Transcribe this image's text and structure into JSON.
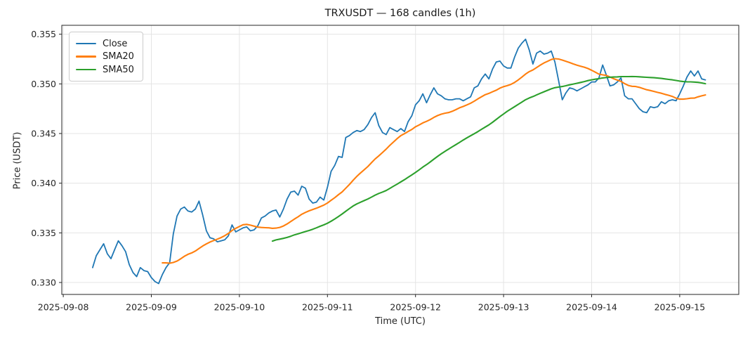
{
  "chart_data": {
    "type": "line",
    "title": "TRXUSDT — 168 candles (1h)",
    "symbol": "TRXUSDT",
    "candle_count": 168,
    "interval": "1h",
    "xlabel": "Time (UTC)",
    "ylabel": "Price (USDT)",
    "grid": true,
    "legend_position": "upper left",
    "x_tick_labels": [
      "2025-09-08",
      "2025-09-09",
      "2025-09-10",
      "2025-09-11",
      "2025-09-12",
      "2025-09-13",
      "2025-09-14",
      "2025-09-15"
    ],
    "x_tick_hours": [
      0,
      24,
      48,
      72,
      96,
      120,
      144,
      168
    ],
    "xlim_hours": [
      -0.4,
      184.1
    ],
    "x_start_hour": 8,
    "y_ticks": [
      0.33,
      0.335,
      0.34,
      0.345,
      0.35,
      0.355
    ],
    "y_tick_labels": [
      "0.330",
      "0.335",
      "0.340",
      "0.345",
      "0.350",
      "0.355"
    ],
    "ylim": [
      0.3288,
      0.3559
    ],
    "style": {
      "grid_color": "#e4e4e4",
      "spine_color": "#262626",
      "text_color": "#262626",
      "background": "#ffffff",
      "close_linewidth": 1.8,
      "sma_linewidth": 2.1
    },
    "series": [
      {
        "name": "Close",
        "color": "#1f77b4",
        "values": [
          0.3315,
          0.3327,
          0.3333,
          0.3339,
          0.3329,
          0.3324,
          0.3333,
          0.3342,
          0.3337,
          0.3331,
          0.3318,
          0.331,
          0.3306,
          0.3315,
          0.3312,
          0.3311,
          0.3305,
          0.3301,
          0.3299,
          0.3308,
          0.3315,
          0.332,
          0.3349,
          0.3367,
          0.3374,
          0.3376,
          0.3372,
          0.3371,
          0.3374,
          0.3382,
          0.3368,
          0.3352,
          0.3345,
          0.3344,
          0.3341,
          0.3342,
          0.3343,
          0.3347,
          0.3358,
          0.3351,
          0.3353,
          0.3355,
          0.3356,
          0.3352,
          0.3353,
          0.3357,
          0.3365,
          0.3367,
          0.337,
          0.3372,
          0.3373,
          0.3366,
          0.3374,
          0.3384,
          0.3391,
          0.3392,
          0.3388,
          0.3397,
          0.3395,
          0.3384,
          0.338,
          0.3381,
          0.3386,
          0.3383,
          0.3396,
          0.3412,
          0.3418,
          0.3427,
          0.3426,
          0.3446,
          0.3448,
          0.3451,
          0.3453,
          0.3452,
          0.3454,
          0.3459,
          0.3466,
          0.3471,
          0.3458,
          0.3451,
          0.3449,
          0.3456,
          0.3454,
          0.3452,
          0.3455,
          0.3452,
          0.3462,
          0.3468,
          0.3479,
          0.3483,
          0.349,
          0.3481,
          0.3489,
          0.3496,
          0.349,
          0.3488,
          0.3485,
          0.3484,
          0.3484,
          0.3485,
          0.3485,
          0.3483,
          0.3485,
          0.3487,
          0.3496,
          0.3498,
          0.3505,
          0.351,
          0.3505,
          0.3515,
          0.3522,
          0.3523,
          0.3518,
          0.3516,
          0.3516,
          0.3527,
          0.3536,
          0.3541,
          0.3545,
          0.3534,
          0.352,
          0.3531,
          0.3533,
          0.353,
          0.3531,
          0.3533,
          0.3522,
          0.3503,
          0.3484,
          0.3491,
          0.3496,
          0.3495,
          0.3493,
          0.3495,
          0.3497,
          0.3499,
          0.3502,
          0.3502,
          0.3506,
          0.3519,
          0.3509,
          0.3498,
          0.3499,
          0.3502,
          0.3506,
          0.3488,
          0.3485,
          0.3485,
          0.348,
          0.3475,
          0.3472,
          0.3471,
          0.3477,
          0.3476,
          0.3477,
          0.3482,
          0.348,
          0.3483,
          0.3484,
          0.3483,
          0.349,
          0.3498,
          0.3507,
          0.3513,
          0.3508,
          0.3513,
          0.3505,
          0.3504
        ]
      },
      {
        "name": "SMA20",
        "color": "#ff7f0e",
        "derived": "sma",
        "period": 20,
        "source": "Close"
      },
      {
        "name": "SMA50",
        "color": "#2ca02c",
        "derived": "sma",
        "period": 50,
        "source": "Close"
      }
    ]
  }
}
